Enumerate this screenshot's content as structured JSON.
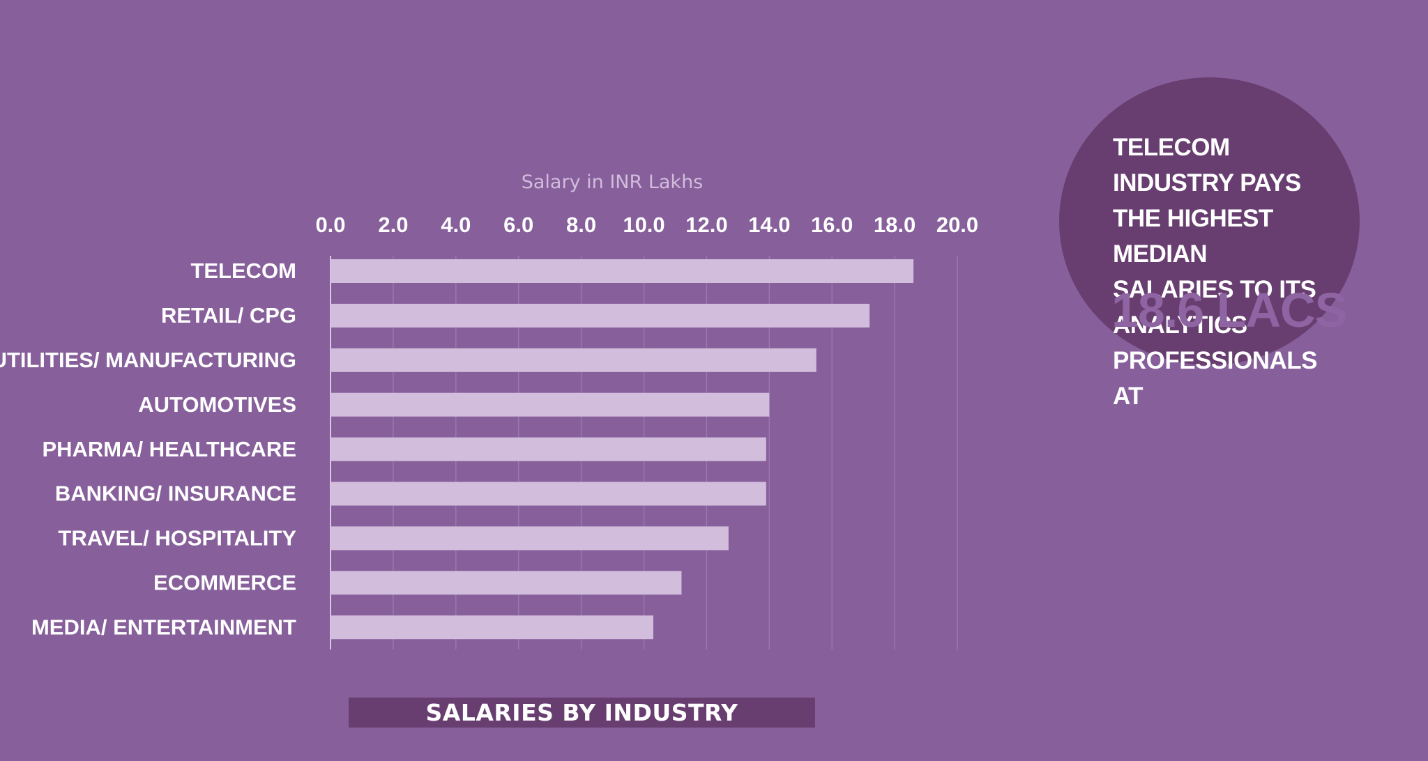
{
  "chart_data": {
    "type": "bar",
    "orientation": "horizontal",
    "title": "SALARIES BY INDUSTRY",
    "xlabel": "Salary in INR Lakhs",
    "ylabel": "",
    "categories": [
      "Telecom",
      "Retail/ CPG",
      "Energy/ Utilities/ Manufacturing",
      "Automotives",
      "Pharma/ Healthcare",
      "Banking/ Insurance",
      "Travel/ Hospitality",
      "Ecommerce",
      "Media/ Entertainment"
    ],
    "values": [
      18.6,
      17.2,
      15.5,
      14.0,
      13.9,
      13.9,
      12.7,
      11.2,
      10.3
    ],
    "xlim": [
      0,
      20
    ],
    "ticks": [
      "0.0",
      "2.0",
      "4.0",
      "6.0",
      "8.0",
      "10.0",
      "12.0",
      "14.0",
      "16.0",
      "18.0",
      "20.0"
    ],
    "grid": true,
    "bar_color": "#d2bddc",
    "background_color": "#865f9b"
  },
  "callout": {
    "text": "Telecom industry pays\nthe highest median\nsalaries to its analytics\nprofessionals at",
    "value": "18.6 lacs",
    "circle_color": "#683e70",
    "value_color": "#8e64a2"
  }
}
